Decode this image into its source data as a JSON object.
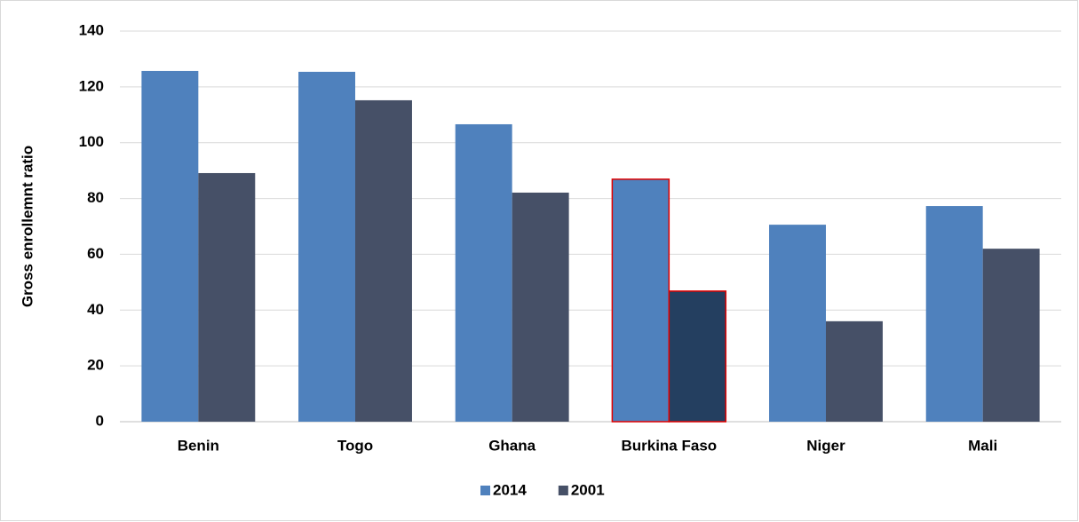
{
  "chart_data": {
    "type": "bar",
    "y_label": "Gross enrollemnt ratio",
    "categories": [
      "Benin",
      "Togo",
      "Ghana",
      "Burkina Faso",
      "Niger",
      "Mali"
    ],
    "series": [
      {
        "name": "2014",
        "color": "#4f81bd",
        "highlight_color": "#4f81bd",
        "values": [
          125.7,
          125.4,
          106.6,
          86.9,
          70.6,
          77.3
        ]
      },
      {
        "name": "2001",
        "color": "#465067",
        "highlight_color": "#243f60",
        "values": [
          89.1,
          115.2,
          82.1,
          46.8,
          36,
          62
        ]
      }
    ],
    "highlight_index": 3,
    "highlight_stroke": "#e00000",
    "ylim": [
      0,
      140
    ],
    "yticks": [
      0,
      20,
      40,
      60,
      80,
      100,
      120,
      140
    ],
    "grid": true,
    "legend": "bottom"
  }
}
